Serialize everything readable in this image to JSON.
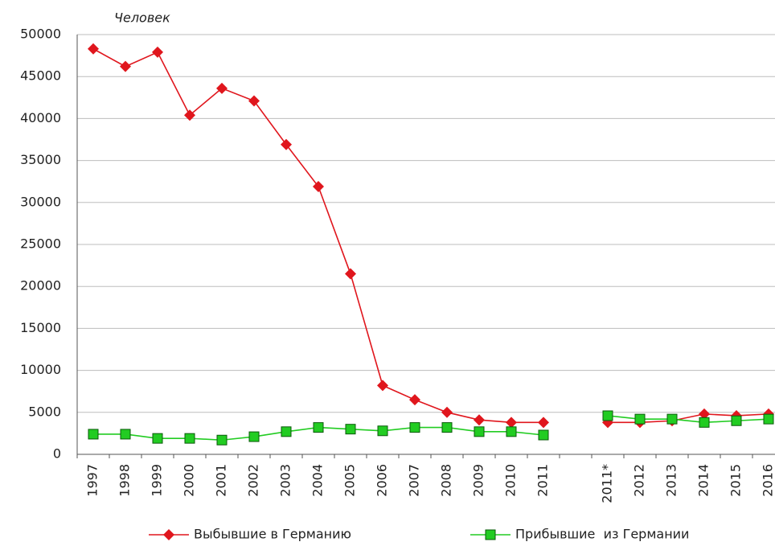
{
  "chart_data": {
    "type": "line",
    "y_label": "Человек",
    "categories": [
      "1997",
      "1998",
      "1999",
      "2000",
      "2001",
      "2002",
      "2003",
      "2004",
      "2005",
      "2006",
      "2007",
      "2008",
      "2009",
      "2010",
      "2011",
      null,
      "2011*",
      "2012",
      "2013",
      "2014",
      "2015",
      "2016"
    ],
    "series": [
      {
        "name": "Выбывшие в Германию",
        "color": "#e0161d",
        "marker": "diamond",
        "values": [
          48300,
          46200,
          47900,
          40400,
          43600,
          42100,
          36900,
          31900,
          21500,
          8200,
          6500,
          5000,
          4100,
          3800,
          3800,
          null,
          3800,
          3800,
          4000,
          4800,
          4600,
          4800
        ]
      },
      {
        "name": "Прибывшие  из Германии",
        "color": "#22cc22",
        "marker": "square",
        "values": [
          2400,
          2400,
          1900,
          1900,
          1700,
          2100,
          2700,
          3200,
          3000,
          2800,
          3200,
          3200,
          2700,
          2700,
          2300,
          null,
          4600,
          4200,
          4200,
          3800,
          4000,
          4200
        ]
      }
    ],
    "ylim": [
      0,
      50000
    ],
    "yticks": [
      0,
      5000,
      10000,
      15000,
      20000,
      25000,
      30000,
      35000,
      40000,
      45000,
      50000
    ],
    "grid": true
  }
}
